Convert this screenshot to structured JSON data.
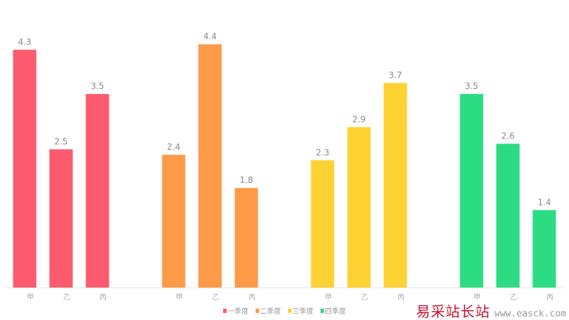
{
  "chart_data": {
    "type": "bar",
    "layout": "grouped-by-series",
    "categories": [
      "甲",
      "乙",
      "丙"
    ],
    "series": [
      {
        "name": "一季度",
        "color": "#ff5b6e",
        "values": [
          4.3,
          2.5,
          3.5
        ]
      },
      {
        "name": "二季度",
        "color": "#ff9a48",
        "values": [
          2.4,
          4.4,
          1.8
        ]
      },
      {
        "name": "三季度",
        "color": "#ffd234",
        "values": [
          2.3,
          2.9,
          3.7
        ]
      },
      {
        "name": "四季度",
        "color": "#2bdc83",
        "values": [
          3.5,
          2.6,
          1.4
        ]
      }
    ],
    "title": "",
    "xlabel": "",
    "ylabel": "",
    "ylim": [
      0,
      5.2
    ],
    "grid": false,
    "data_labels": true,
    "legend": "bottom-center"
  },
  "watermark": {
    "text": "易采站长站",
    "url": "www.easck.com"
  }
}
